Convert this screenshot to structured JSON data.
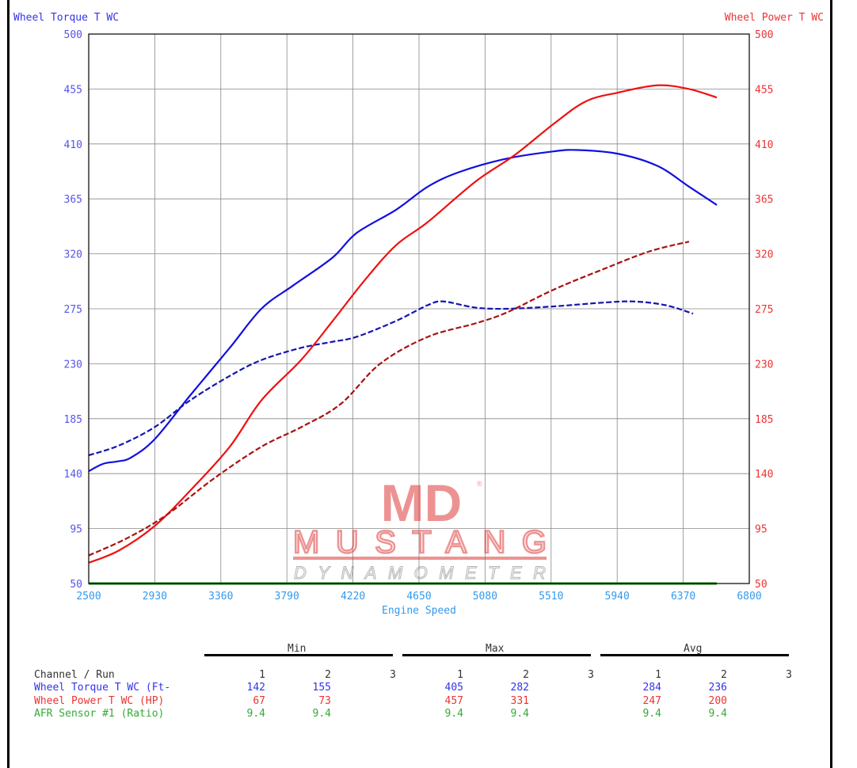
{
  "chart_data": {
    "type": "line",
    "xlabel": "Engine Speed",
    "ylabel_left": "Wheel Torque T WC",
    "ylabel_right": "Wheel Power T WC",
    "xlim": [
      2500,
      6800
    ],
    "ylim": [
      50,
      500
    ],
    "x_ticks": [
      "2500",
      "2930",
      "3360",
      "3790",
      "4220",
      "4650",
      "5080",
      "5510",
      "5940",
      "6370",
      "6800"
    ],
    "y_ticks": [
      "50",
      "95",
      "140",
      "185",
      "230",
      "275",
      "320",
      "365",
      "410",
      "455",
      "500"
    ],
    "grid": true,
    "colors": {
      "torque": "#1010e0",
      "power": "#ee1111",
      "afr": "#118811",
      "run2_torque": "#1515b0",
      "run2_power": "#aa1111"
    },
    "series": [
      {
        "id": "torque-run1",
        "style": "solid",
        "color": "#1010e0",
        "x": [
          2500,
          2593,
          2686,
          2773,
          2928,
          3160,
          3418,
          3624,
          3830,
          4088,
          4243,
          4500,
          4707,
          4913,
          5222,
          5532,
          5686,
          5944,
          6202,
          6408,
          6589
        ],
        "y": [
          142,
          148,
          150,
          153,
          168,
          204,
          243,
          275,
          294,
          317,
          337,
          356,
          375,
          387,
          398,
          404,
          405,
          402,
          392,
          375,
          360
        ]
      },
      {
        "id": "torque-run2",
        "style": "dashed",
        "color": "#1515b0",
        "x": [
          2500,
          2696,
          2928,
          3160,
          3418,
          3624,
          3882,
          4088,
          4243,
          4500,
          4707,
          4810,
          5016,
          5222,
          5532,
          5841,
          6047,
          6253,
          6434
        ],
        "y": [
          155,
          163,
          178,
          200,
          220,
          233,
          243,
          248,
          252,
          265,
          278,
          281,
          276,
          275,
          277,
          280,
          281,
          278,
          271
        ]
      },
      {
        "id": "power-run1",
        "style": "solid",
        "color": "#ee1111",
        "x": [
          2500,
          2696,
          2928,
          3160,
          3418,
          3624,
          3882,
          4088,
          4294,
          4500,
          4707,
          5016,
          5274,
          5532,
          5738,
          5944,
          6202,
          6408,
          6589
        ],
        "y": [
          67,
          77,
          97,
          126,
          162,
          200,
          233,
          265,
          298,
          327,
          346,
          379,
          401,
          427,
          445,
          452,
          458,
          455,
          448
        ]
      },
      {
        "id": "power-run2",
        "style": "dashed",
        "color": "#aa1111",
        "x": [
          2500,
          2748,
          3005,
          3315,
          3624,
          3882,
          4140,
          4397,
          4707,
          5016,
          5222,
          5532,
          5841,
          6150,
          6408
        ],
        "y": [
          73,
          87,
          106,
          136,
          162,
          178,
          197,
          230,
          252,
          263,
          272,
          291,
          307,
          322,
          330
        ]
      },
      {
        "id": "afr-run1",
        "style": "solid",
        "color": "#118811",
        "x": [
          2500,
          6589
        ],
        "y": [
          50,
          50
        ]
      }
    ]
  },
  "logo": {
    "mark": "MD",
    "name": "MUSTANG",
    "sub": "DYNAMOMETER",
    "reg": "®"
  },
  "table": {
    "groups": [
      "Min",
      "Max",
      "Avg"
    ],
    "header": {
      "label": "Channel / Run",
      "runs": [
        "1",
        "2",
        "3"
      ]
    },
    "rows": [
      {
        "label": "Wheel Torque T WC (Ft-",
        "color": "#3333ee",
        "values": [
          [
            "142",
            "155",
            ""
          ],
          [
            "405",
            "282",
            ""
          ],
          [
            "284",
            "236",
            ""
          ]
        ]
      },
      {
        "label": "Wheel Power T WC (HP)",
        "color": "#ee3333",
        "values": [
          [
            "67",
            "73",
            ""
          ],
          [
            "457",
            "331",
            ""
          ],
          [
            "247",
            "200",
            ""
          ]
        ]
      },
      {
        "label": "AFR Sensor #1 (Ratio)",
        "color": "#33aa33",
        "values": [
          [
            "9.4",
            "9.4",
            ""
          ],
          [
            "9.4",
            "9.4",
            ""
          ],
          [
            "9.4",
            "9.4",
            ""
          ]
        ]
      }
    ]
  }
}
